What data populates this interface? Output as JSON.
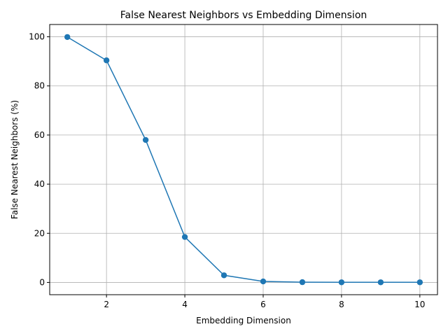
{
  "chart_data": {
    "type": "line",
    "title": "False Nearest Neighbors vs Embedding Dimension",
    "xlabel": "Embedding Dimension",
    "ylabel": "False Nearest Neighbors (%)",
    "x": [
      1,
      2,
      3,
      4,
      5,
      6,
      7,
      8,
      9,
      10
    ],
    "series": [
      {
        "values": [
          99.9,
          90.4,
          58.0,
          18.5,
          2.9,
          0.4,
          0.1,
          0.05,
          0.05,
          0.05
        ]
      }
    ],
    "xlim": [
      0.55,
      10.45
    ],
    "ylim": [
      -5,
      105
    ],
    "xticks": [
      2,
      4,
      6,
      8,
      10
    ],
    "yticks": [
      0,
      20,
      40,
      60,
      80,
      100
    ],
    "grid": true,
    "marker": "circle",
    "color": "#1f77b4"
  }
}
